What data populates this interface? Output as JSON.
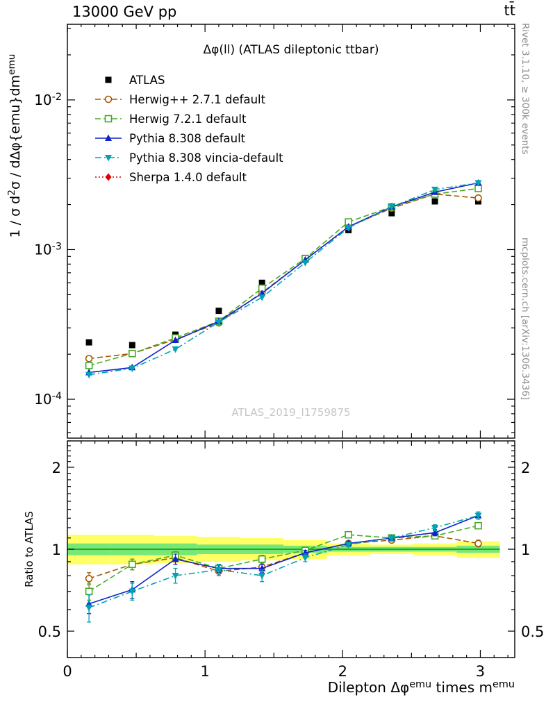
{
  "header": {
    "left": "13000 GeV pp",
    "right": "tt̄"
  },
  "sidebar_right": {
    "top": "Rivet 3.1.10, ≥ 300k events",
    "bottom": "mcplots.cern.ch [arXiv:1306.3436]"
  },
  "chart_data": {
    "type": "line",
    "title": "Δφ(ll) (ATLAS dileptonic ttbar)",
    "watermark": "ATLAS_2019_I1759875",
    "xlabel": "Dilepton Δφ^{emu} times m^{emu}",
    "xlim": [
      0,
      3.25
    ],
    "xticks": [
      0,
      1,
      2,
      3
    ],
    "x": [
      0.157,
      0.471,
      0.785,
      1.1,
      1.414,
      1.728,
      2.042,
      2.356,
      2.67,
      2.985
    ],
    "bin_edges": [
      0,
      0.3142,
      0.6283,
      0.9425,
      1.2566,
      1.5708,
      1.885,
      2.1991,
      2.5133,
      2.8274,
      3.1416
    ],
    "main": {
      "ylabel": "1 / σ  d^{2}σ / dΔφ{emu}dm^{emu}",
      "yscale": "log",
      "ylim": [
        5.5e-05,
        0.032
      ],
      "ytick_exponents": [
        -4,
        -3,
        -2
      ],
      "series": [
        {
          "name": "ATLAS",
          "color": "#000000",
          "marker": "square-filled",
          "line": "none",
          "values": [
            0.00024,
            0.00023,
            0.00027,
            0.00039,
            0.0006,
            0.00088,
            0.00135,
            0.00175,
            0.0021,
            0.0021
          ]
        },
        {
          "name": "Herwig++ 2.7.1 default",
          "color": "#aa5500",
          "marker": "circle-open",
          "line": "dashed",
          "yerr_rel": 0.03,
          "values": [
            0.000187,
            0.000202,
            0.000251,
            0.000324,
            0.000516,
            0.000854,
            0.00142,
            0.00189,
            0.00235,
            0.00221
          ]
        },
        {
          "name": "Herwig 7.2.1 default",
          "color": "#44aa22",
          "marker": "square-open",
          "line": "dashed",
          "yerr_rel": 0.03,
          "values": [
            0.000168,
            0.000202,
            0.000257,
            0.000332,
            0.000552,
            0.000871,
            0.00153,
            0.00193,
            0.00235,
            0.00256
          ]
        },
        {
          "name": "Pythia 8.308 default",
          "color": "#1122cc",
          "marker": "triangle-up-filled",
          "line": "solid",
          "yerr_rel": 0.03,
          "values": [
            0.000151,
            0.000163,
            0.000248,
            0.000332,
            0.00051,
            0.000854,
            0.00142,
            0.00193,
            0.00242,
            0.00279
          ]
        },
        {
          "name": "Pythia 8.308 vincia-default",
          "color": "#00a2b3",
          "marker": "triangle-down-filled",
          "line": "dash-dot",
          "yerr_rel": 0.03,
          "values": [
            0.000146,
            0.000161,
            0.000216,
            0.000328,
            0.00048,
            0.000818,
            0.0014,
            0.00193,
            0.00252,
            0.00279
          ]
        },
        {
          "name": "Sherpa 1.4.0 default",
          "color": "#dd0000",
          "marker": "diamond-filled",
          "line": "dotted",
          "values": []
        }
      ]
    },
    "ratio": {
      "ylabel": "Ratio to ATLAS",
      "yscale": "log",
      "ylim": [
        0.4,
        2.5
      ],
      "yticks": [
        0.5,
        1,
        2
      ],
      "bands": {
        "yellow_color": "#ffff66",
        "green_color": "#77e877",
        "line_color": "#009900",
        "yellow_lo": [
          0.88,
          0.88,
          0.89,
          0.9,
          0.91,
          0.92,
          0.95,
          0.96,
          0.95,
          0.93
        ],
        "yellow_hi": [
          1.13,
          1.13,
          1.12,
          1.11,
          1.1,
          1.08,
          1.05,
          1.04,
          1.05,
          1.07
        ],
        "green_lo": [
          0.95,
          0.95,
          0.95,
          0.96,
          0.96,
          0.97,
          0.98,
          0.98,
          0.98,
          0.97
        ],
        "green_hi": [
          1.05,
          1.05,
          1.05,
          1.04,
          1.04,
          1.03,
          1.02,
          1.02,
          1.02,
          1.03
        ]
      },
      "series": [
        {
          "name": "Herwig++ 2.7.1 default",
          "color": "#aa5500",
          "marker": "circle-open",
          "line": "dashed",
          "values": [
            0.78,
            0.88,
            0.93,
            0.83,
            0.86,
            0.97,
            1.05,
            1.08,
            1.12,
            1.05
          ],
          "errors": [
            0.04,
            0.04,
            0.03,
            0.03,
            0.03,
            0.02,
            0.02,
            0.02,
            0.03,
            0.03
          ]
        },
        {
          "name": "Herwig 7.2.1 default",
          "color": "#44aa22",
          "marker": "square-open",
          "line": "dashed",
          "values": [
            0.7,
            0.88,
            0.95,
            0.85,
            0.92,
            0.99,
            1.13,
            1.1,
            1.12,
            1.22
          ],
          "errors": [
            0.05,
            0.04,
            0.03,
            0.03,
            0.03,
            0.02,
            0.02,
            0.02,
            0.03,
            0.03
          ]
        },
        {
          "name": "Pythia 8.308 default",
          "color": "#1122cc",
          "marker": "triangle-up-filled",
          "line": "solid",
          "values": [
            0.63,
            0.71,
            0.92,
            0.85,
            0.85,
            0.97,
            1.05,
            1.1,
            1.15,
            1.33
          ],
          "errors": [
            0.05,
            0.05,
            0.04,
            0.03,
            0.03,
            0.02,
            0.02,
            0.02,
            0.03,
            0.04
          ]
        },
        {
          "name": "Pythia 8.308 vincia-default",
          "color": "#00a2b3",
          "marker": "triangle-down-filled",
          "line": "dash-dot",
          "values": [
            0.61,
            0.7,
            0.8,
            0.84,
            0.8,
            0.93,
            1.04,
            1.1,
            1.2,
            1.33
          ],
          "errors": [
            0.07,
            0.05,
            0.05,
            0.04,
            0.04,
            0.03,
            0.02,
            0.02,
            0.03,
            0.04
          ]
        },
        {
          "name": "Sherpa 1.4.0 default",
          "color": "#dd0000",
          "marker": "diamond-filled",
          "line": "dotted",
          "values": [],
          "errors": []
        }
      ]
    }
  }
}
